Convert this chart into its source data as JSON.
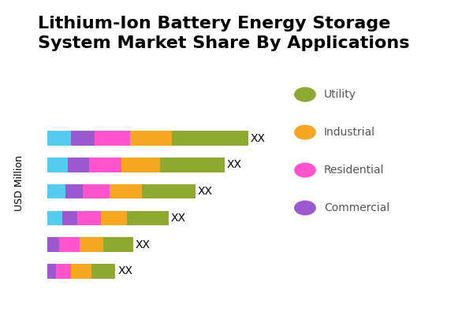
{
  "title": "Lithium-Ion Battery Energy Storage\nSystem Market Share By Applications",
  "ylabel": "USD Million",
  "bar_label": "XX",
  "categories": [
    "",
    "",
    "",
    "",
    "",
    ""
  ],
  "segments": {
    "cyan": [
      8,
      7,
      6,
      5,
      0,
      0
    ],
    "commercial": [
      8,
      7,
      6,
      5,
      4,
      3
    ],
    "residential": [
      12,
      11,
      9,
      8,
      7,
      5
    ],
    "industrial": [
      14,
      13,
      11,
      9,
      8,
      7
    ],
    "utility": [
      26,
      22,
      18,
      14,
      10,
      8
    ]
  },
  "colors": {
    "cyan": "#55CCEE",
    "commercial": "#9B59D0",
    "residential": "#FF55CC",
    "industrial": "#F5A623",
    "utility": "#8EA832"
  },
  "legend_labels": [
    "Utility",
    "Industrial",
    "Residential",
    "Commercial"
  ],
  "legend_colors": [
    "#8EA832",
    "#F5A623",
    "#FF55CC",
    "#9B59D0"
  ],
  "background_color": "#FFFFFF",
  "title_fontsize": 16,
  "label_fontsize": 11
}
